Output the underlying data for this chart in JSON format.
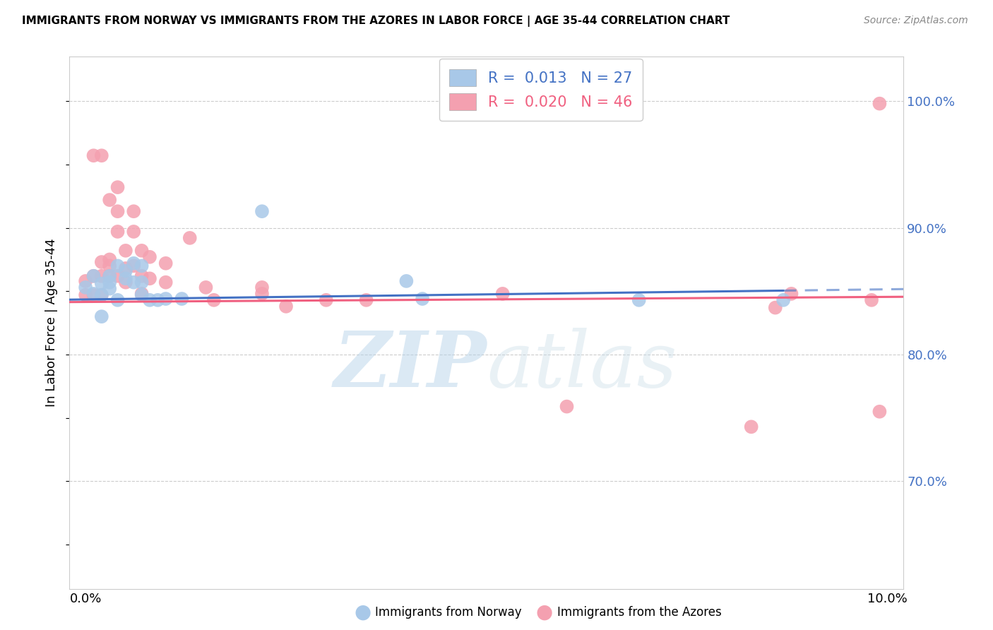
{
  "title": "IMMIGRANTS FROM NORWAY VS IMMIGRANTS FROM THE AZORES IN LABOR FORCE | AGE 35-44 CORRELATION CHART",
  "source": "Source: ZipAtlas.com",
  "ylabel": "In Labor Force | Age 35-44",
  "ylim": [
    0.615,
    1.035
  ],
  "xlim": [
    -0.002,
    0.102
  ],
  "norway_R": "0.013",
  "norway_N": "27",
  "azores_R": "0.020",
  "azores_N": "46",
  "norway_color": "#a8c8e8",
  "azores_color": "#f4a0b0",
  "norway_line_color": "#4472c4",
  "azores_line_color": "#f06080",
  "norway_scatter_x": [
    0.0,
    0.001,
    0.001,
    0.002,
    0.002,
    0.002,
    0.003,
    0.003,
    0.003,
    0.004,
    0.004,
    0.005,
    0.005,
    0.006,
    0.006,
    0.007,
    0.007,
    0.007,
    0.008,
    0.009,
    0.01,
    0.012,
    0.022,
    0.04,
    0.042,
    0.069,
    0.087
  ],
  "norway_scatter_y": [
    0.853,
    0.862,
    0.848,
    0.856,
    0.847,
    0.83,
    0.862,
    0.857,
    0.852,
    0.87,
    0.843,
    0.866,
    0.86,
    0.872,
    0.857,
    0.87,
    0.857,
    0.847,
    0.843,
    0.843,
    0.844,
    0.844,
    0.913,
    0.858,
    0.844,
    0.843,
    0.843
  ],
  "azores_scatter_x": [
    0.0,
    0.0,
    0.001,
    0.001,
    0.001,
    0.002,
    0.002,
    0.002,
    0.002,
    0.003,
    0.003,
    0.003,
    0.003,
    0.004,
    0.004,
    0.004,
    0.004,
    0.005,
    0.005,
    0.005,
    0.006,
    0.006,
    0.006,
    0.007,
    0.007,
    0.007,
    0.008,
    0.008,
    0.01,
    0.01,
    0.013,
    0.015,
    0.016,
    0.022,
    0.022,
    0.025,
    0.03,
    0.035,
    0.052,
    0.06,
    0.083,
    0.086,
    0.088,
    0.098,
    0.099,
    0.099
  ],
  "azores_scatter_y": [
    0.858,
    0.847,
    0.957,
    0.862,
    0.847,
    0.957,
    0.873,
    0.862,
    0.847,
    0.922,
    0.875,
    0.87,
    0.862,
    0.932,
    0.913,
    0.897,
    0.862,
    0.882,
    0.868,
    0.857,
    0.913,
    0.897,
    0.87,
    0.882,
    0.862,
    0.848,
    0.877,
    0.86,
    0.872,
    0.857,
    0.892,
    0.853,
    0.843,
    0.848,
    0.853,
    0.838,
    0.843,
    0.843,
    0.848,
    0.759,
    0.743,
    0.837,
    0.848,
    0.843,
    0.755,
    0.998
  ],
  "background_color": "#ffffff",
  "grid_color": "#cccccc",
  "watermark_color": "#c8dff0",
  "watermark_alpha": 0.45,
  "norway_line_intercept": 0.8435,
  "norway_line_slope": 0.08,
  "azores_line_intercept": 0.8415,
  "azores_line_slope": 0.04
}
